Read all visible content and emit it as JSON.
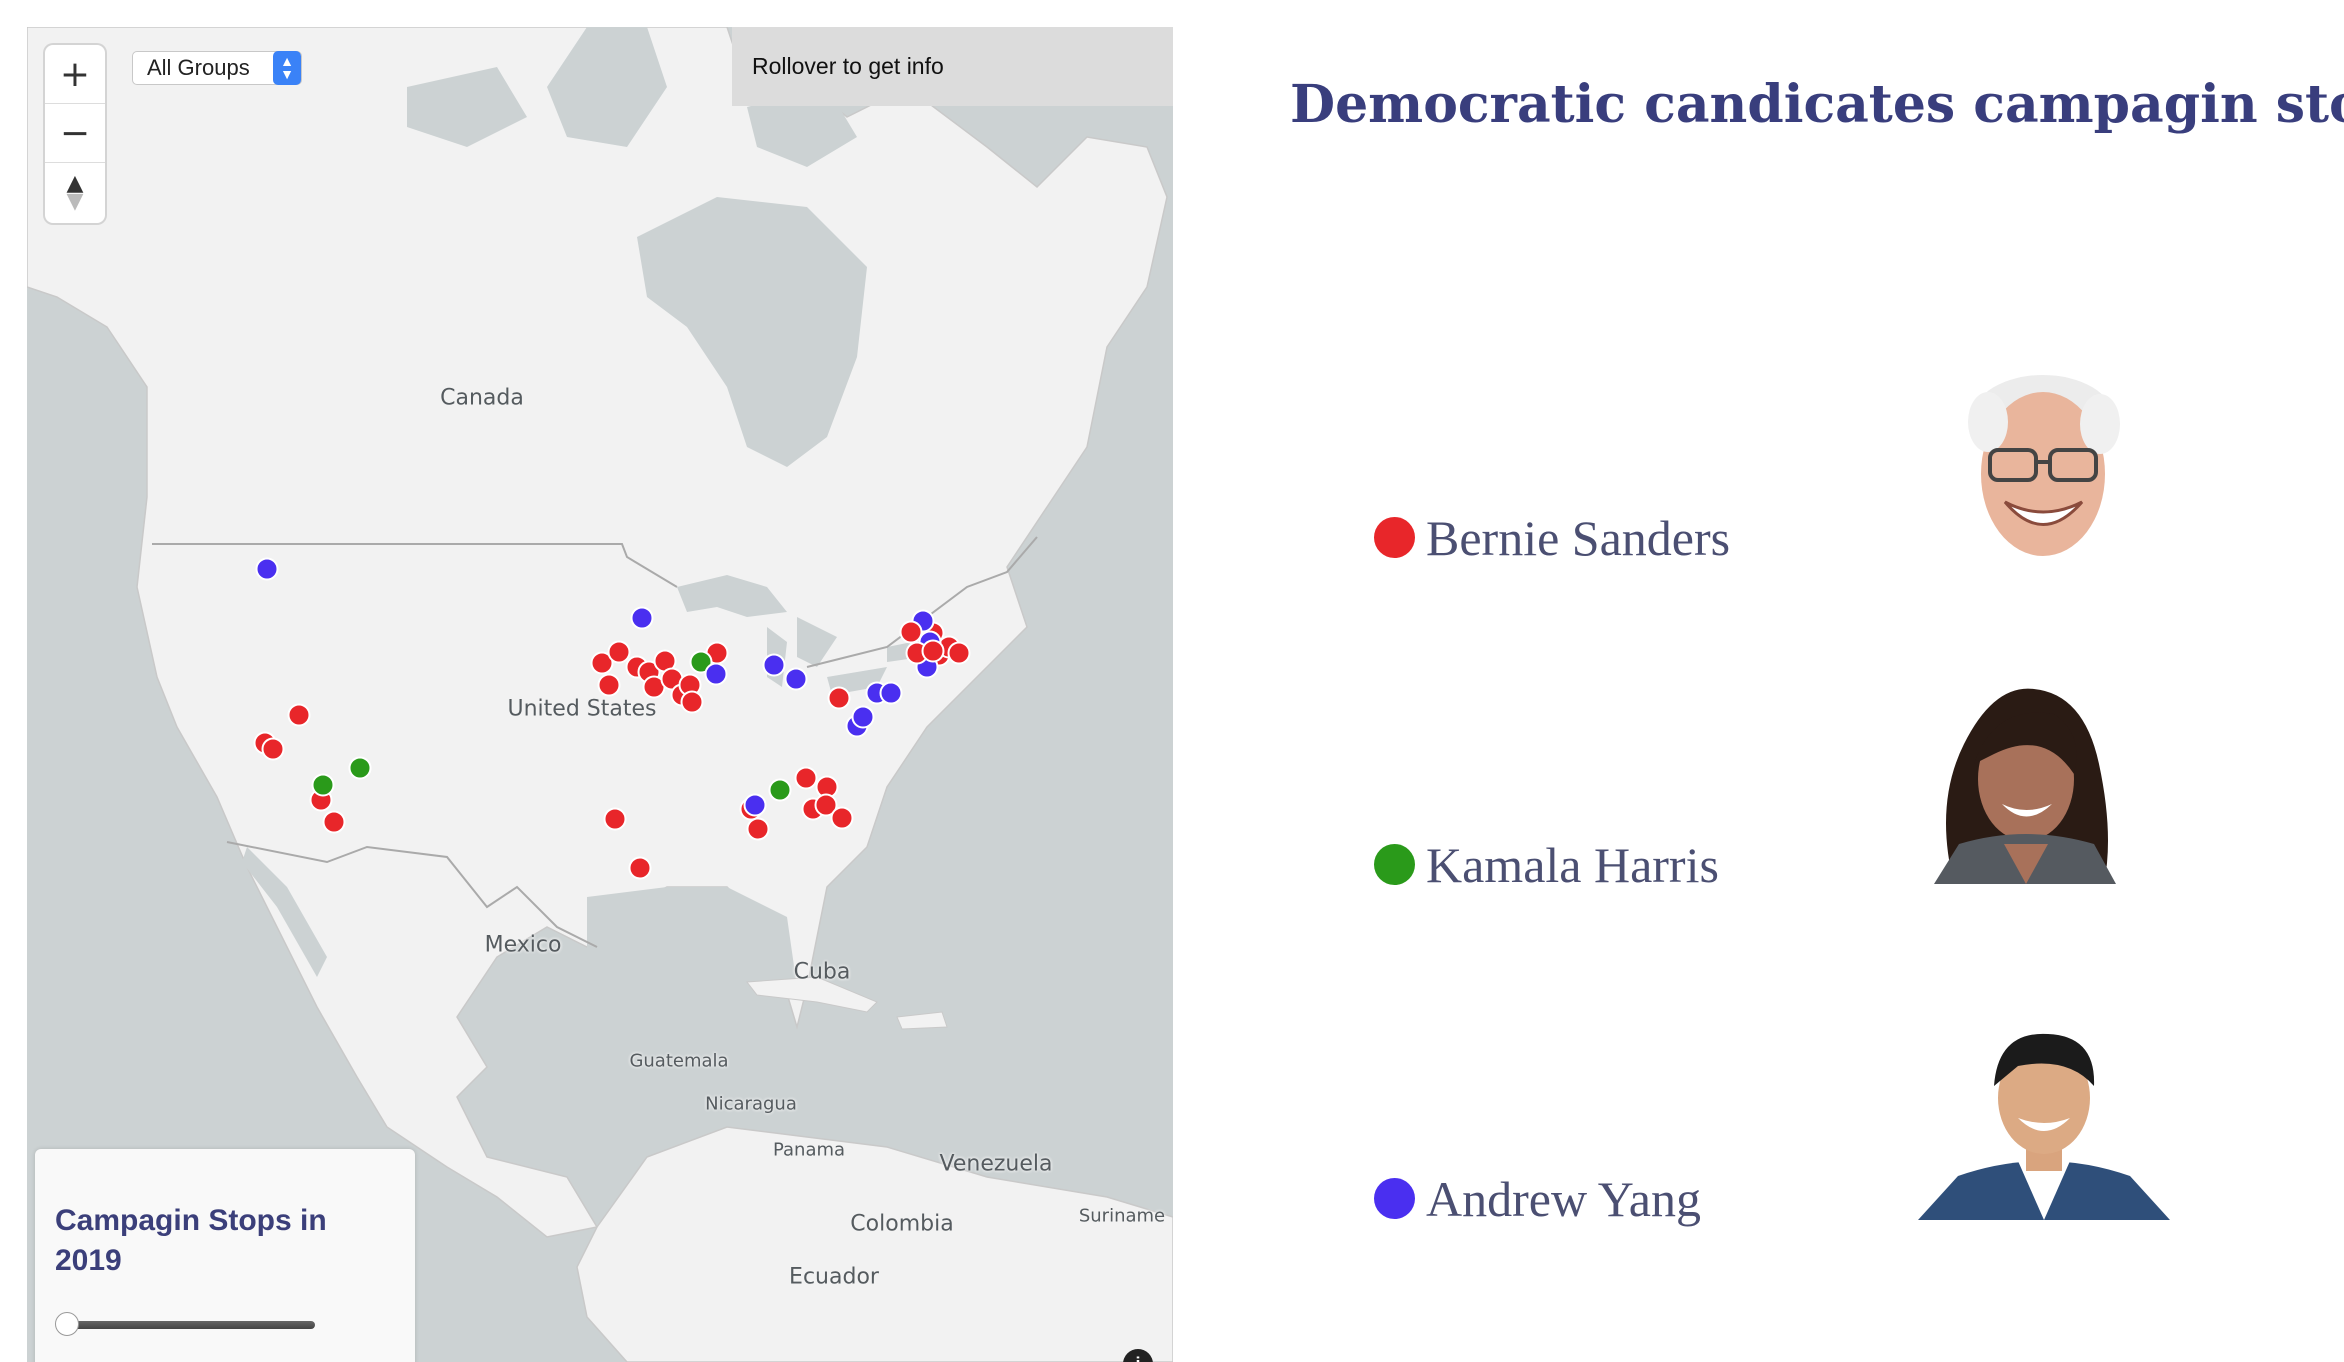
{
  "title": "Democratic candicates campagin stops",
  "map": {
    "rollover_text": "Rollover to get info",
    "group_select": {
      "value": "All Groups"
    },
    "zoom": {
      "in_label": "+",
      "out_label": "−",
      "compass_label": "▲"
    },
    "legend": {
      "title": "Campagin Stops in 2019"
    },
    "info_label": "i",
    "places": {
      "canada": "Canada",
      "united_states": "United States",
      "mexico": "Mexico",
      "cuba": "Cuba",
      "guatemala": "Guatemala",
      "nicaragua": "Nicaragua",
      "panama": "Panama",
      "venezuela": "Venezuela",
      "colombia": "Colombia",
      "suriname": "Suriname",
      "ecuador": "Ecuador"
    }
  },
  "candidates": [
    {
      "name": "Bernie Sanders",
      "color": "#e8262a"
    },
    {
      "name": "Kamala Harris",
      "color": "#2a9a1a"
    },
    {
      "name": "Andrew Yang",
      "color": "#4a2ff0"
    }
  ],
  "colors": {
    "title": "#393e7d",
    "water": "#ccd2d3",
    "land": "#f2f2f2"
  }
}
